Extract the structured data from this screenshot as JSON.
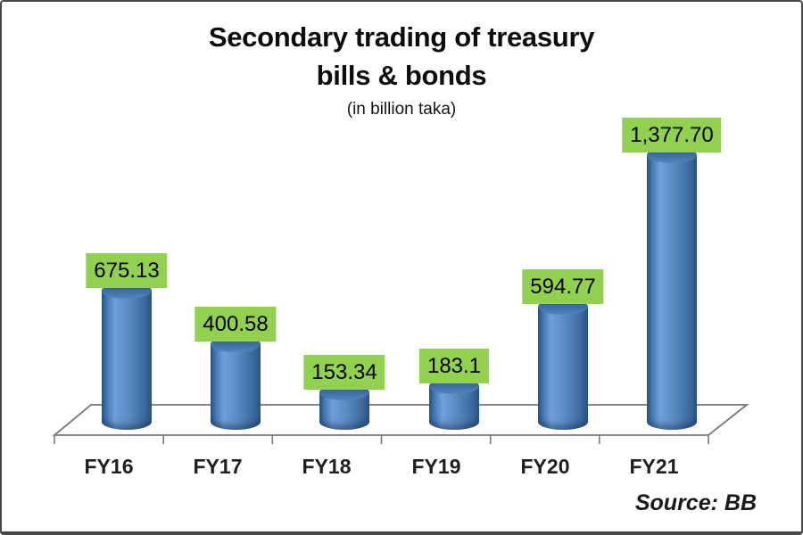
{
  "title": {
    "line1": "Secondary trading of treasury",
    "line2": "bills & bonds",
    "subtitle": "(in billion taka)"
  },
  "source": {
    "label": "Source: BB"
  },
  "chart_data": {
    "type": "bar",
    "subtype": "3d-cylinder",
    "title": "Secondary trading of treasury bills & bonds",
    "unit_note": "(in billion taka)",
    "categories": [
      "FY16",
      "FY17",
      "FY18",
      "FY19",
      "FY20",
      "FY21"
    ],
    "values": [
      675.13,
      400.58,
      153.34,
      183.1,
      594.77,
      1377.7
    ],
    "data_labels": [
      "675.13",
      "400.58",
      "153.34",
      "183.1",
      "594.77",
      "1,377.70"
    ],
    "xlabel": "",
    "ylabel": "",
    "ylim": [
      0,
      1400
    ],
    "grid": false,
    "legend": "none",
    "axis_labels_visible": "x-only",
    "colors": {
      "bar_fill": "#4f81bd",
      "bar_highlight": "#6fa0d8",
      "bar_edge": "#2d5a8c",
      "data_label_bg": "#92d050",
      "data_label_text": "#000000",
      "axis_line": "#787878",
      "frame_border": "#4a4a4a",
      "background": "#ffffff"
    }
  }
}
